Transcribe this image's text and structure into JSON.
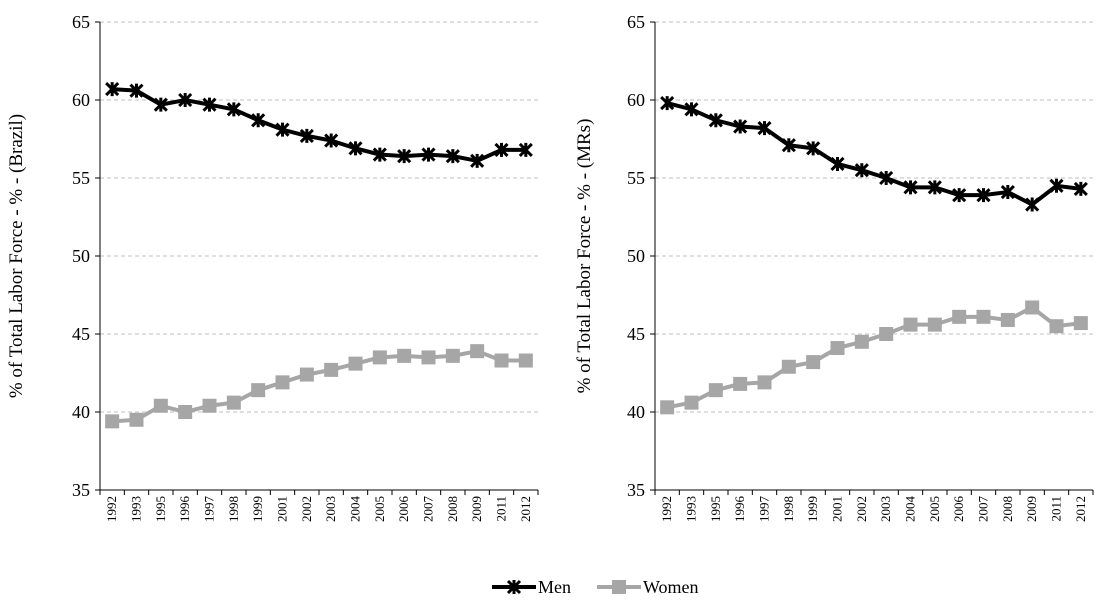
{
  "chart_data": [
    {
      "type": "line",
      "y_label": "% of Total Labor Force  - % - (Brazil)",
      "categories": [
        "1992",
        "1993",
        "1995",
        "1996",
        "1997",
        "1998",
        "1999",
        "2001",
        "2002",
        "2003",
        "2004",
        "2005",
        "2006",
        "2007",
        "2008",
        "2009",
        "2011",
        "2012"
      ],
      "series": [
        {
          "name": "Men",
          "color": "#000000",
          "values": [
            60.7,
            60.6,
            59.7,
            60.0,
            59.7,
            59.4,
            58.7,
            58.1,
            57.7,
            57.4,
            56.9,
            56.5,
            56.4,
            56.5,
            56.4,
            56.1,
            56.8,
            56.8
          ]
        },
        {
          "name": "Women",
          "color": "#a6a6a6",
          "values": [
            39.4,
            39.5,
            40.4,
            40.0,
            40.4,
            40.6,
            41.4,
            41.9,
            42.4,
            42.7,
            43.1,
            43.5,
            43.6,
            43.5,
            43.6,
            43.9,
            43.3,
            43.3
          ]
        }
      ],
      "ylim": [
        35,
        65
      ],
      "yticks": [
        35,
        40,
        45,
        50,
        55,
        60,
        65
      ],
      "grid": true
    },
    {
      "type": "line",
      "y_label": "% of Total Labor Force  - % - (MRs)",
      "categories": [
        "1992",
        "1993",
        "1995",
        "1996",
        "1997",
        "1998",
        "1999",
        "2001",
        "2002",
        "2003",
        "2004",
        "2005",
        "2006",
        "2007",
        "2008",
        "2009",
        "2011",
        "2012"
      ],
      "series": [
        {
          "name": "Men",
          "color": "#000000",
          "values": [
            59.8,
            59.4,
            58.7,
            58.3,
            58.2,
            57.1,
            56.9,
            55.9,
            55.5,
            55.0,
            54.4,
            54.4,
            53.9,
            53.9,
            54.1,
            53.3,
            54.5,
            54.3
          ]
        },
        {
          "name": "Women",
          "color": "#a6a6a6",
          "values": [
            40.3,
            40.6,
            41.4,
            41.8,
            41.9,
            42.9,
            43.2,
            44.1,
            44.5,
            45.0,
            45.6,
            45.6,
            46.1,
            46.1,
            45.9,
            46.7,
            45.5,
            45.7
          ]
        }
      ],
      "ylim": [
        35,
        65
      ],
      "yticks": [
        35,
        40,
        45,
        50,
        55,
        60,
        65
      ],
      "grid": true
    }
  ]
}
